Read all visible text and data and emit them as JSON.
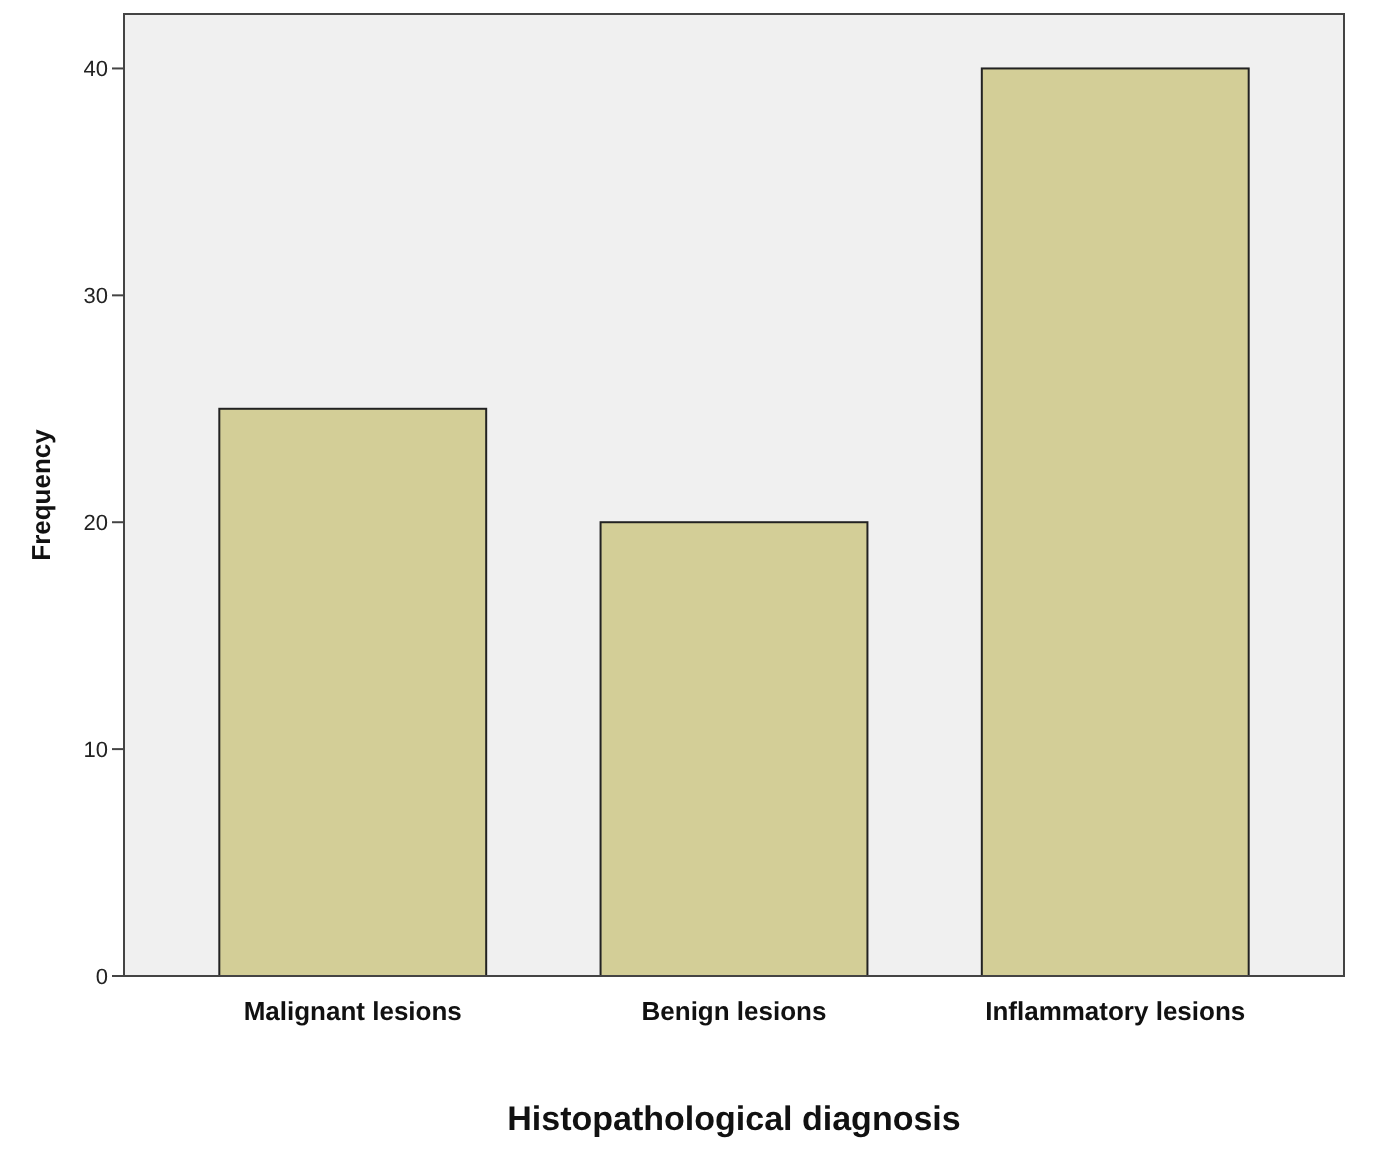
{
  "chart_data": {
    "type": "bar",
    "xlabel": "Histopathological diagnosis",
    "ylabel": "Frequency",
    "categories": [
      "Malignant lesions",
      "Benign lesions",
      "Inflammatory lesions"
    ],
    "values": [
      25,
      20,
      40
    ],
    "color": "#d3ce97",
    "ylim": [
      0,
      42.4
    ],
    "yticks": [
      0,
      10,
      20,
      30,
      40
    ],
    "grid": false
  }
}
